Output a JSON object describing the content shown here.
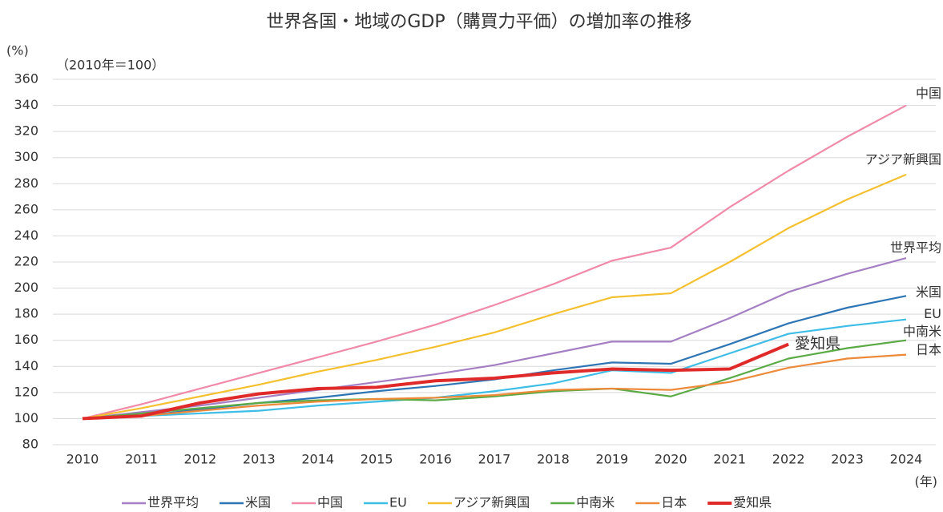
{
  "chart_data": {
    "type": "line",
    "title": "世界各国・地域のGDP（購買力平価）の増加率の推移",
    "y_unit": "(%)",
    "note": "（2010年＝100）",
    "x_unit": "(年)",
    "categories": [
      "2010",
      "2011",
      "2012",
      "2013",
      "2014",
      "2015",
      "2016",
      "2017",
      "2018",
      "2019",
      "2020",
      "2021",
      "2022",
      "2023",
      "2024"
    ],
    "ylim": [
      80,
      360
    ],
    "yticks": [
      80,
      100,
      120,
      140,
      160,
      180,
      200,
      220,
      240,
      260,
      280,
      300,
      320,
      340,
      360
    ],
    "grid": true,
    "series": [
      {
        "name": "世界平均",
        "color": "#a47fc4",
        "values": [
          100,
          105,
          110,
          116,
          122,
          128,
          134,
          141,
          150,
          159,
          159,
          177,
          197,
          211,
          223
        ]
      },
      {
        "name": "米国",
        "color": "#2e75b6",
        "values": [
          100,
          102,
          107,
          112,
          116,
          121,
          125,
          130,
          137,
          143,
          142,
          157,
          173,
          185,
          194
        ]
      },
      {
        "name": "中国",
        "color": "#f08aa8",
        "values": [
          100,
          111,
          123,
          135,
          147,
          159,
          172,
          187,
          203,
          221,
          231,
          262,
          290,
          316,
          340
        ]
      },
      {
        "name": "EU",
        "color": "#3ebde6",
        "values": [
          100,
          102,
          104,
          106,
          110,
          113,
          116,
          121,
          127,
          137,
          135,
          150,
          165,
          171,
          176
        ]
      },
      {
        "name": "アジア新興国",
        "color": "#f5c030",
        "values": [
          100,
          108,
          117,
          126,
          136,
          145,
          155,
          166,
          180,
          193,
          196,
          220,
          246,
          268,
          287
        ]
      },
      {
        "name": "中南米",
        "color": "#5aaa46",
        "values": [
          100,
          104,
          108,
          112,
          114,
          115,
          114,
          117,
          121,
          123,
          117,
          131,
          146,
          154,
          160
        ]
      },
      {
        "name": "日本",
        "color": "#ed8a3a",
        "values": [
          100,
          102,
          106,
          110,
          113,
          115,
          116,
          118,
          122,
          123,
          122,
          128,
          139,
          146,
          149
        ]
      },
      {
        "name": "愛知県",
        "color": "#e02a2a",
        "values": [
          100,
          102,
          112,
          119,
          123,
          124,
          129,
          131,
          135,
          138,
          137,
          138,
          157,
          null,
          null
        ]
      }
    ]
  }
}
